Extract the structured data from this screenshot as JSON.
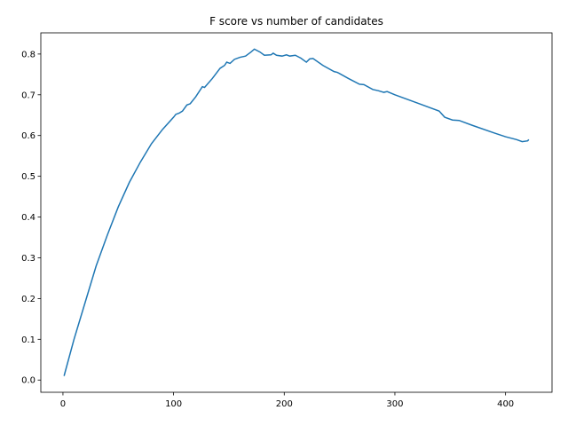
{
  "chart_data": {
    "type": "line",
    "title": "F score vs number of candidates",
    "x": [
      1,
      10,
      20,
      30,
      40,
      50,
      60,
      70,
      80,
      90,
      100,
      102,
      105,
      108,
      112,
      115,
      120,
      126,
      128,
      135,
      142,
      146,
      148,
      151,
      155,
      160,
      165,
      170,
      173,
      178,
      182,
      188,
      190,
      193,
      198,
      202,
      205,
      210,
      215,
      220,
      223,
      226,
      235,
      245,
      248,
      258,
      268,
      272,
      280,
      285,
      290,
      293,
      300,
      320,
      340,
      345,
      352,
      358,
      370,
      390,
      400,
      410,
      415,
      420,
      421
    ],
    "series": [
      {
        "name": "F score",
        "color": "#1f77b4",
        "values": [
          0.01,
          0.1,
          0.19,
          0.28,
          0.355,
          0.425,
          0.485,
          0.535,
          0.58,
          0.615,
          0.645,
          0.652,
          0.655,
          0.66,
          0.675,
          0.678,
          0.695,
          0.72,
          0.718,
          0.74,
          0.765,
          0.772,
          0.78,
          0.777,
          0.787,
          0.792,
          0.795,
          0.805,
          0.812,
          0.805,
          0.797,
          0.798,
          0.802,
          0.797,
          0.795,
          0.798,
          0.795,
          0.797,
          0.79,
          0.78,
          0.788,
          0.789,
          0.772,
          0.757,
          0.755,
          0.74,
          0.726,
          0.725,
          0.713,
          0.71,
          0.706,
          0.708,
          0.7,
          0.68,
          0.66,
          0.645,
          0.638,
          0.637,
          0.625,
          0.606,
          0.597,
          0.59,
          0.585,
          0.587,
          0.59
        ]
      }
    ],
    "xlim": [
      -20,
      442
    ],
    "ylim": [
      -0.03,
      0.852
    ],
    "xticks": [
      0,
      100,
      200,
      300,
      400
    ],
    "yticks": [
      {
        "value": 0,
        "label": "0.0"
      },
      {
        "value": 0.1,
        "label": "0.1"
      },
      {
        "value": 0.2,
        "label": "0.2"
      },
      {
        "value": 0.3,
        "label": "0.3"
      },
      {
        "value": 0.4,
        "label": "0.4"
      },
      {
        "value": 0.5,
        "label": "0.5"
      },
      {
        "value": 0.6,
        "label": "0.6"
      },
      {
        "value": 0.7,
        "label": "0.7"
      },
      {
        "value": 0.8,
        "label": "0.8"
      }
    ]
  }
}
